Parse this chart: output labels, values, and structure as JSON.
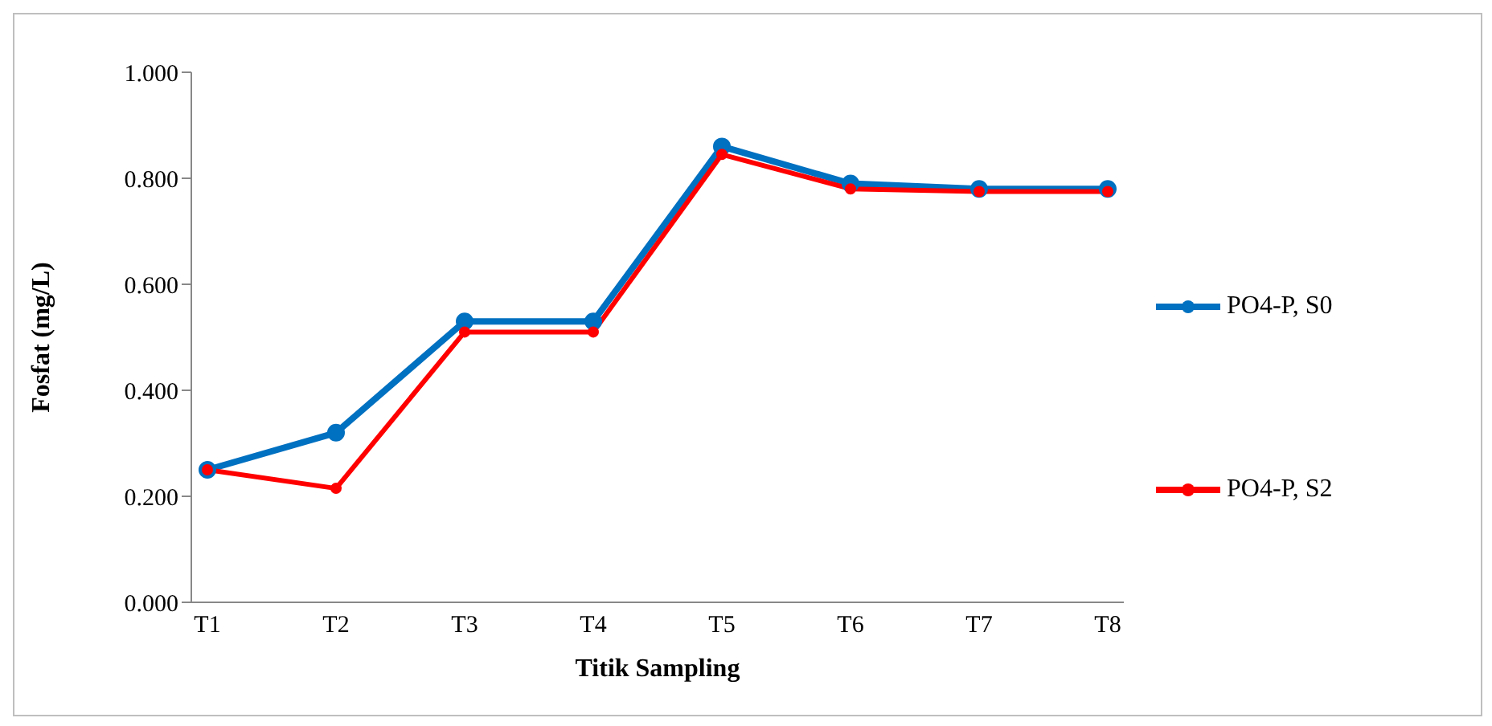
{
  "chart_data": {
    "type": "line",
    "xlabel": "Titik Sampling",
    "ylabel": "Fosfat (mg/L)",
    "categories": [
      "T1",
      "T2",
      "T3",
      "T4",
      "T5",
      "T6",
      "T7",
      "T8"
    ],
    "series": [
      {
        "name": "PO4-P, S0",
        "color": "#0070c0",
        "values": [
          0.25,
          0.32,
          0.53,
          0.53,
          0.86,
          0.79,
          0.78,
          0.78
        ]
      },
      {
        "name": "PO4-P, S2",
        "color": "#ff0000",
        "values": [
          0.25,
          0.215,
          0.51,
          0.51,
          0.845,
          0.78,
          0.775,
          0.775
        ]
      }
    ],
    "ylim": [
      0,
      1
    ],
    "yticks": [
      {
        "value": 0,
        "label": "0.000"
      },
      {
        "value": 0.2,
        "label": "0.200"
      },
      {
        "value": 0.4,
        "label": "0.400"
      },
      {
        "value": 0.6,
        "label": "0.600"
      },
      {
        "value": 0.8,
        "label": "0.800"
      },
      {
        "value": 1,
        "label": "1.000"
      }
    ],
    "grid": false,
    "legend": "right",
    "marker": "circle",
    "line_style": "solid"
  }
}
